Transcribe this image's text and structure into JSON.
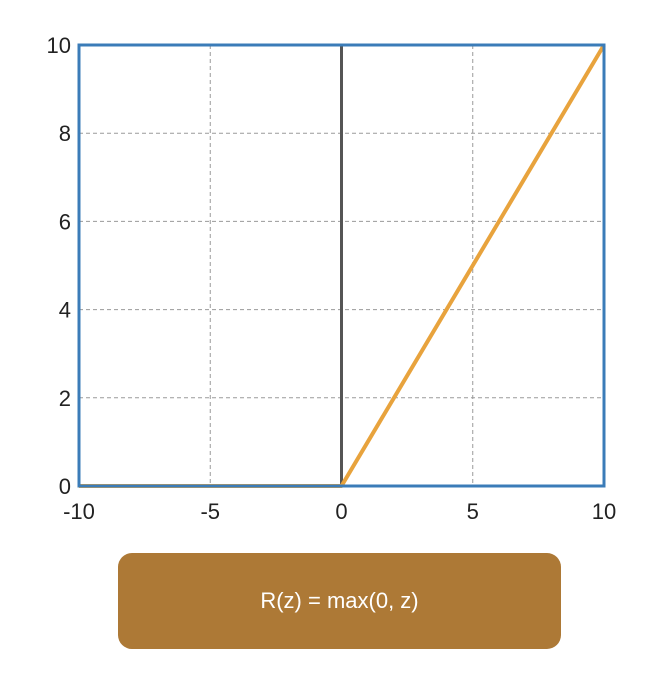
{
  "chart_data": {
    "type": "line",
    "title": "",
    "xlabel": "",
    "ylabel": "",
    "xlim": [
      -10,
      10
    ],
    "ylim": [
      0,
      10
    ],
    "x_ticks": [
      -10,
      -5,
      0,
      5,
      10
    ],
    "y_ticks": [
      0,
      2,
      4,
      6,
      8,
      10
    ],
    "x_tick_labels": [
      "-10",
      "-5",
      "0",
      "5",
      "10"
    ],
    "y_tick_labels": [
      "0",
      "2",
      "4",
      "6",
      "8",
      "10"
    ],
    "grid": true,
    "legend": "none",
    "series": [
      {
        "x": [
          -10,
          0,
          10
        ],
        "y": [
          0,
          0,
          10
        ],
        "color": "#E8A33D"
      }
    ],
    "vertical_line_x": 0
  },
  "formula": {
    "text": "R(z) = max(0, z)",
    "background": "#AD7936"
  },
  "colors": {
    "frame": "#3B7CB8",
    "grid": "#9A9A9A",
    "zero_axis": "#555555",
    "series": "#E8A33D"
  }
}
